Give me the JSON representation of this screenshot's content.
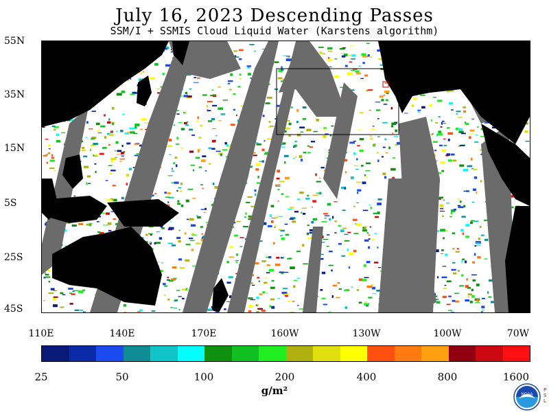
{
  "title": "July 16, 2023  Descending Passes",
  "subtitle": "SSM/I + SSMIS Cloud Liquid Water (Karstens algorithm)",
  "lat_labels": [
    "55N",
    "35N",
    "15N",
    "5S",
    "25S",
    "45S"
  ],
  "lon_labels": [
    "110E",
    "140E",
    "170E",
    "160W",
    "130W",
    "100W",
    "70W"
  ],
  "colorbar": {
    "colors": [
      "#0a1a7a",
      "#0a2aa8",
      "#1a4af0",
      "#108c94",
      "#10c4c8",
      "#00ffff",
      "#109010",
      "#10c020",
      "#20ee20",
      "#b0b010",
      "#e0e010",
      "#ffff00",
      "#ff5010",
      "#ff7a10",
      "#ffa010",
      "#900010",
      "#cc0810",
      "#ff1010"
    ],
    "tick_labels": [
      "25",
      "50",
      "100",
      "200",
      "400",
      "800",
      "1600"
    ]
  },
  "units": "g/m²",
  "logo": {
    "text": "NOAA",
    "side_mark": "PSL"
  },
  "colors": {
    "land": "#000000",
    "no_data": "#6b6b6b",
    "clear": "#ffffff"
  }
}
